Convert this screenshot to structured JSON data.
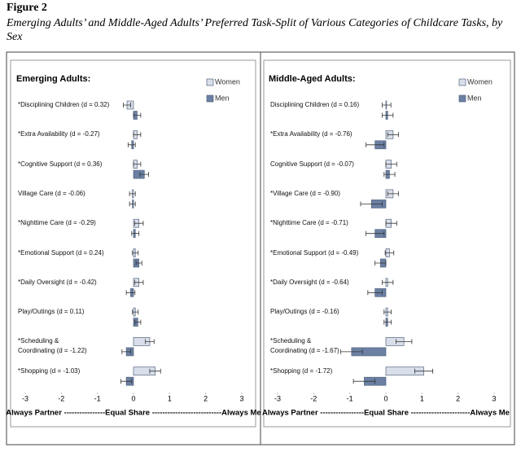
{
  "figure": {
    "label": "Figure 2",
    "caption": "Emerging Adults’ and Middle-Aged Adults’ Preferred Task-Split of Various Categories of Childcare Tasks, by Sex"
  },
  "chart_data": [
    {
      "type": "bar",
      "orientation": "horizontal",
      "title": "Emerging Adults:",
      "categories": [
        "*Disciplining Children (d = 0.32)",
        "*Extra Availability (d = -0.27)",
        "*Cognitive Support (d = 0.36)",
        "Village Care (d = -0.06)",
        "*Nighttime Care (d = -0.29)",
        "*Emotional Support (d = 0.24)",
        "*Daily Oversight (d = -0.42)",
        "Play/Outings (d = 0.11)",
        "*Scheduling &\nCoordinating (d = -1.22)",
        "*Shopping (d = -1.03)"
      ],
      "series": [
        {
          "name": "Women",
          "color": "#d9dfea",
          "values": [
            -0.18,
            0.1,
            0.1,
            -0.03,
            0.15,
            0.05,
            0.15,
            0.05,
            0.45,
            0.6
          ],
          "errors": [
            0.1,
            0.1,
            0.1,
            0.08,
            0.12,
            0.08,
            0.12,
            0.08,
            0.12,
            0.15
          ]
        },
        {
          "name": "Men",
          "color": "#6b80a3",
          "values": [
            0.1,
            -0.05,
            0.3,
            -0.03,
            0.05,
            0.15,
            -0.08,
            0.12,
            -0.2,
            -0.2
          ],
          "errors": [
            0.1,
            0.1,
            0.12,
            0.08,
            0.1,
            0.08,
            0.12,
            0.08,
            0.12,
            0.15
          ]
        }
      ],
      "xlim": [
        -3,
        3
      ],
      "xticks": [
        -3,
        -2,
        -1,
        0,
        1,
        2,
        3
      ],
      "xlabel": "Always Partner ----------------Equal Share ---------------------------Always Me",
      "legend": "upper right"
    },
    {
      "type": "bar",
      "orientation": "horizontal",
      "title": "Middle-Aged Adults:",
      "categories": [
        "Disciplining Children (d = 0.16)",
        "*Extra Availability (d = -0.76)",
        "Cognitive Support (d = -0.07)",
        "*Village Care (d = -0.90)",
        "*Nighttime Care (d = -0.71)",
        "*Emotional Support (d = -0.49)",
        "*Daily Oversight (d = -0.64)",
        "Play/Outings (d = -0.16)",
        "*Scheduling &\nCoordinating (d = -1.67)",
        "*Shopping (d = -1.72)"
      ],
      "series": [
        {
          "name": "Women",
          "color": "#d9dfea",
          "values": [
            0.02,
            0.2,
            0.15,
            0.2,
            0.15,
            0.1,
            0.05,
            0.05,
            0.5,
            1.05
          ],
          "errors": [
            0.12,
            0.15,
            0.15,
            0.15,
            0.15,
            0.12,
            0.15,
            0.1,
            0.22,
            0.25
          ]
        },
        {
          "name": "Men",
          "color": "#6b80a3",
          "values": [
            0.05,
            -0.3,
            0.1,
            -0.4,
            -0.3,
            -0.15,
            -0.3,
            0.05,
            -0.95,
            -0.6
          ],
          "errors": [
            0.15,
            0.25,
            0.15,
            0.3,
            0.25,
            0.15,
            0.2,
            0.1,
            0.3,
            0.3
          ]
        }
      ],
      "xlim": [
        -3,
        3
      ],
      "xticks": [
        -3,
        -2,
        -1,
        0,
        1,
        2,
        3
      ],
      "xlabel": "Always Partner -----------------Equal Share -----------------------Always Me",
      "legend": "upper right"
    }
  ]
}
